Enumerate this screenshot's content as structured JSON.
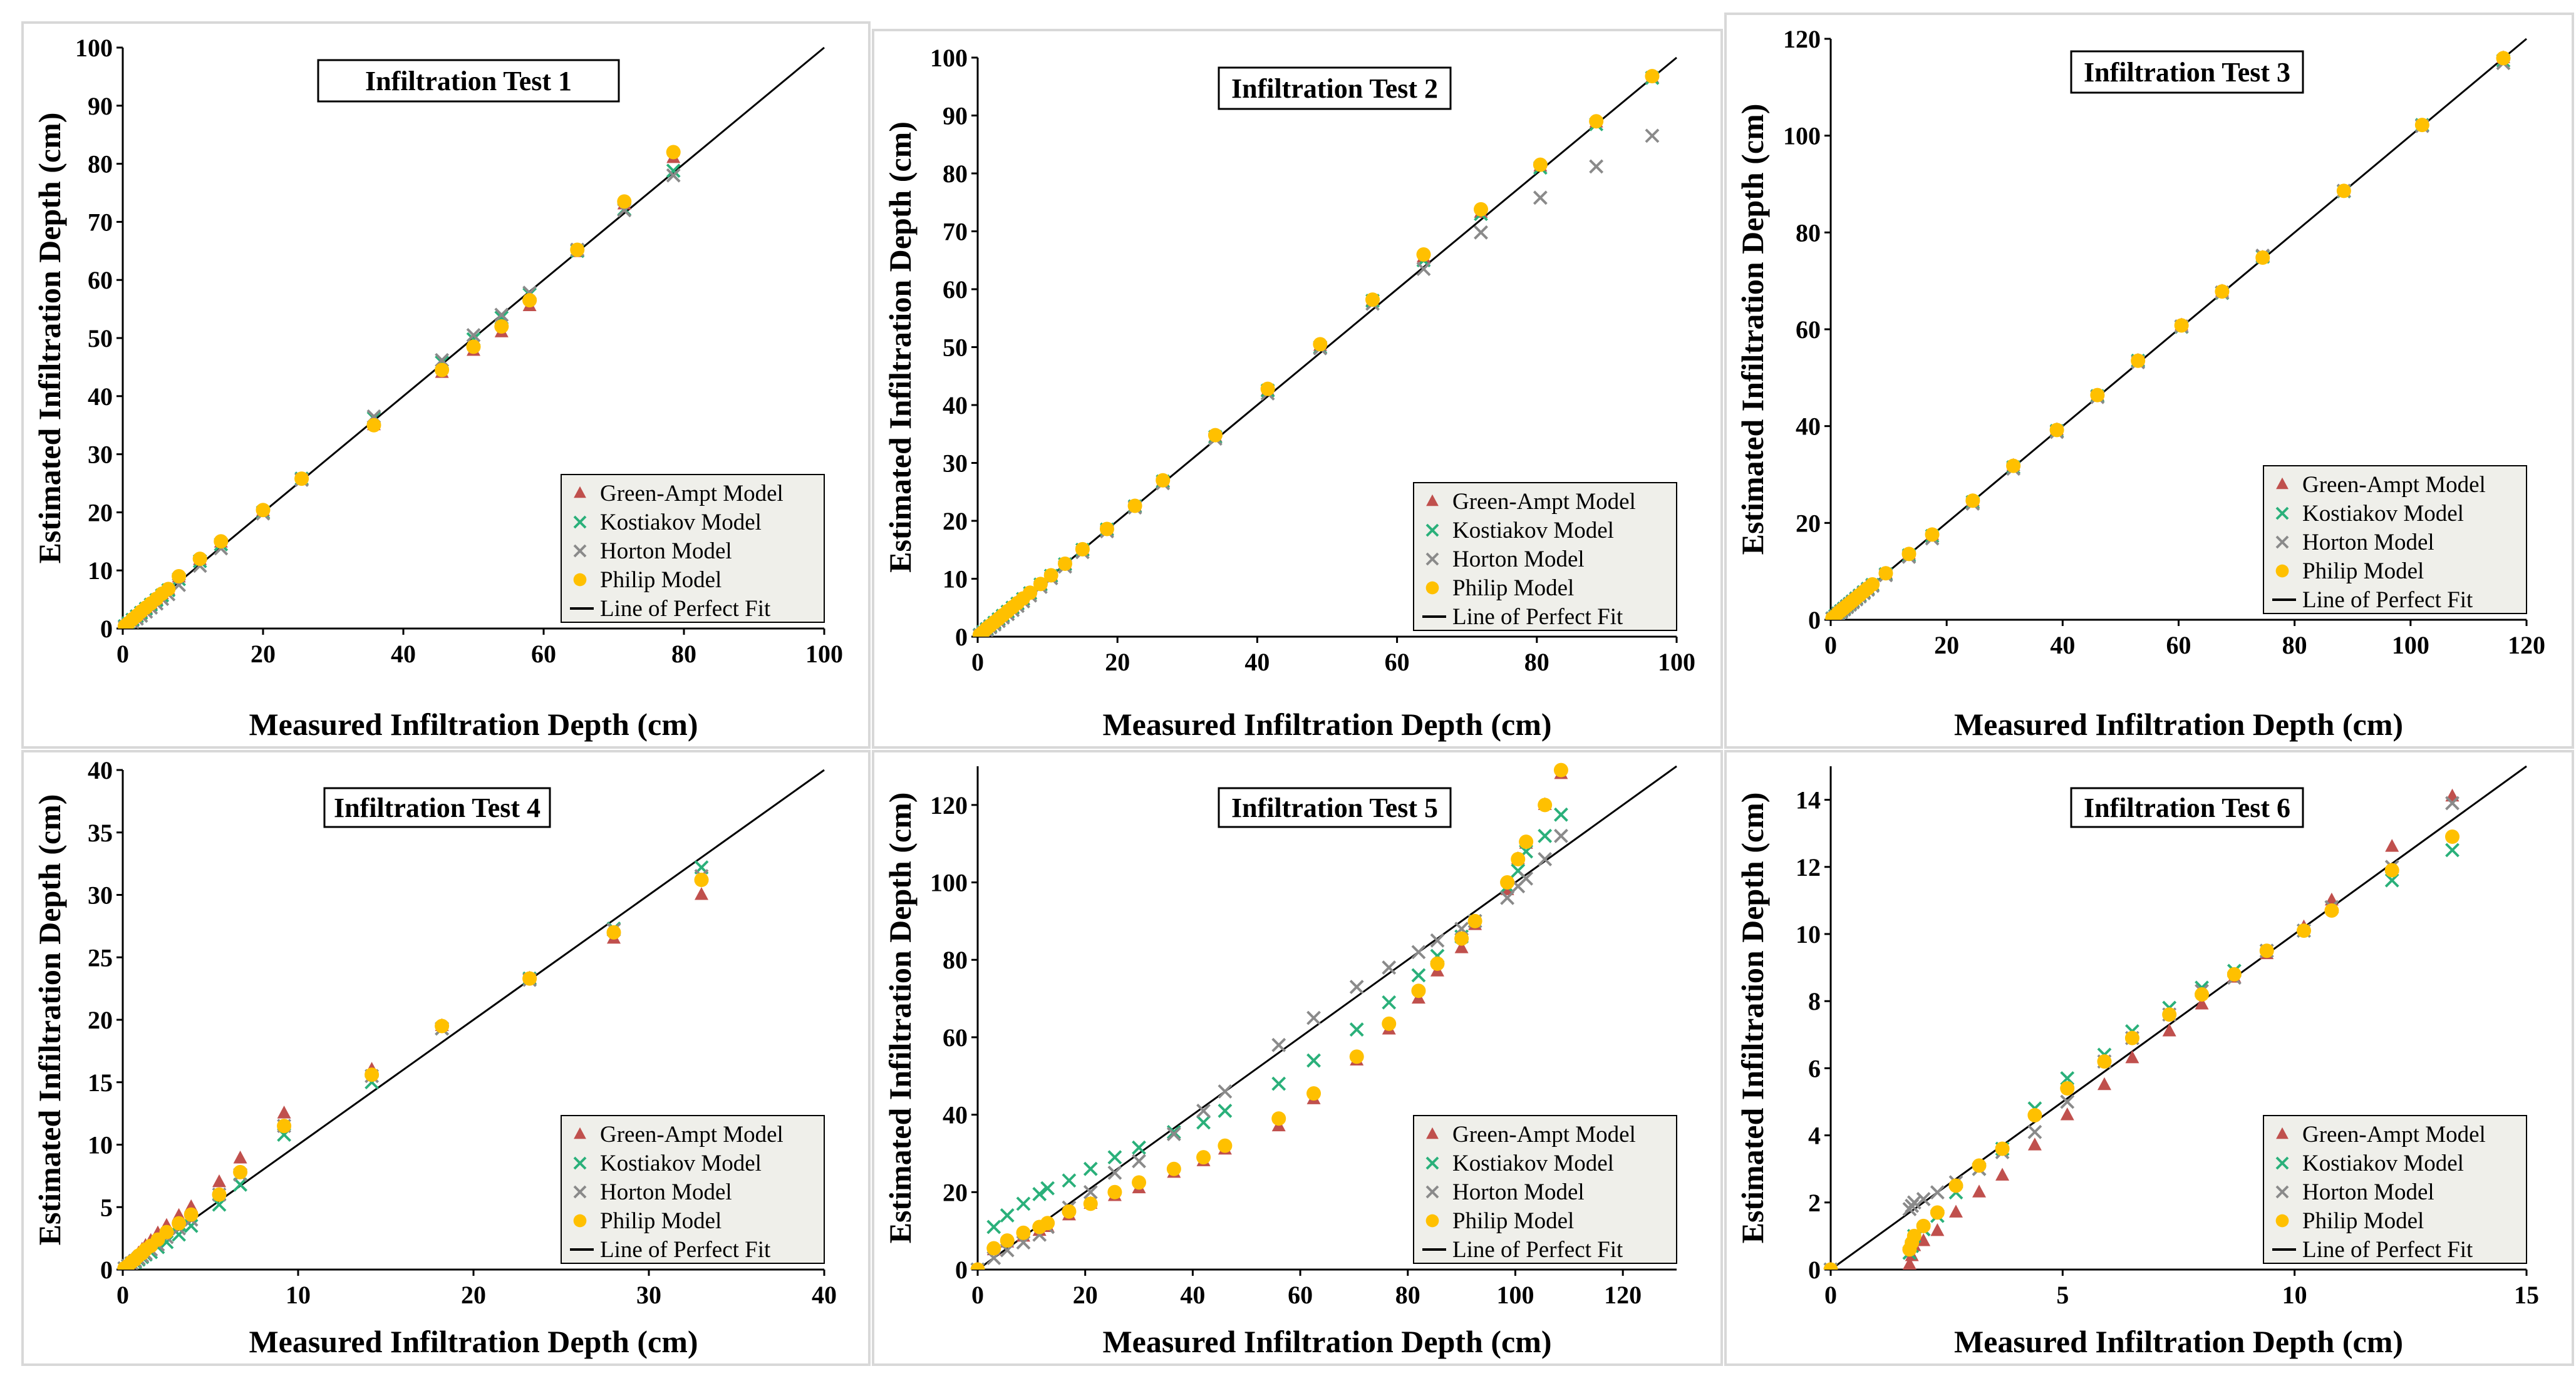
{
  "figure": {
    "x_label": "Measured Infiltration Depth (cm)",
    "y_label": "Estimated Infiltration Depth (cm)",
    "legend": [
      {
        "key": "ga",
        "label": "Green-Ampt Model",
        "marker": "triangle",
        "color": "#c0504d"
      },
      {
        "key": "ko",
        "label": "Kostiakov Model",
        "marker": "x",
        "color": "#2ab07a"
      },
      {
        "key": "ho",
        "label": "Horton Model",
        "marker": "x",
        "color": "#8a8a8a"
      },
      {
        "key": "ph",
        "label": "Philip Model",
        "marker": "circle",
        "color": "#ffc000"
      },
      {
        "key": "line",
        "label": "Line of Perfect Fit",
        "marker": "line",
        "color": "#000000"
      }
    ]
  },
  "chart_data": [
    {
      "type": "scatter",
      "title": "Infiltration Test 1",
      "xlabel": "Measured Infiltration Depth (cm)",
      "ylabel": "Estimated Infiltration Depth (cm)",
      "xlim": [
        0,
        100
      ],
      "ylim": [
        0,
        100
      ],
      "xticks": [
        0,
        20,
        40,
        60,
        80,
        100
      ],
      "yticks": [
        0,
        10,
        20,
        30,
        40,
        50,
        60,
        70,
        80,
        90,
        100
      ],
      "x": [
        0.3,
        0.8,
        1.4,
        2.0,
        2.6,
        3.3,
        4.0,
        4.8,
        5.6,
        6.5,
        8.0,
        11.0,
        14.0,
        20.0,
        25.5,
        35.8,
        45.5,
        50.0,
        54.0,
        58.0,
        64.8,
        71.5,
        78.5
      ],
      "series": [
        {
          "name": "Green-Ampt Model",
          "values": [
            0.3,
            0.8,
            1.5,
            2.1,
            2.8,
            3.5,
            4.2,
            5.0,
            5.9,
            6.7,
            8.8,
            11.8,
            14.8,
            20.2,
            25.6,
            35.0,
            44.0,
            47.8,
            51.0,
            55.5,
            64.8,
            73.0,
            81.0
          ]
        },
        {
          "name": "Kostiakov Model",
          "values": [
            0.4,
            0.9,
            1.5,
            2.1,
            2.7,
            3.4,
            4.1,
            4.9,
            5.7,
            6.6,
            8.5,
            11.6,
            14.5,
            20.0,
            25.8,
            36.2,
            45.8,
            49.8,
            53.5,
            57.5,
            65.0,
            72.2,
            78.8
          ]
        },
        {
          "name": "Horton Model",
          "values": [
            0.2,
            0.6,
            1.1,
            1.7,
            2.2,
            2.9,
            3.6,
            4.3,
            5.1,
            5.9,
            7.5,
            10.8,
            13.8,
            19.8,
            25.6,
            36.5,
            46.2,
            50.5,
            54.0,
            57.8,
            65.2,
            72.0,
            78.0
          ]
        },
        {
          "name": "Philip Model",
          "values": [
            0.4,
            0.9,
            1.6,
            2.2,
            2.9,
            3.6,
            4.3,
            5.1,
            6.0,
            6.8,
            9.0,
            12.0,
            15.0,
            20.4,
            25.8,
            35.0,
            44.5,
            48.5,
            52.0,
            56.5,
            65.2,
            73.5,
            82.0
          ]
        }
      ]
    },
    {
      "type": "scatter",
      "title": "Infiltration Test 2",
      "xlabel": "Measured Infiltration Depth (cm)",
      "ylabel": "Estimated Infiltration Depth (cm)",
      "xlim": [
        0,
        100
      ],
      "ylim": [
        0,
        100
      ],
      "xticks": [
        0,
        20,
        40,
        60,
        80,
        100
      ],
      "yticks": [
        0,
        10,
        20,
        30,
        40,
        50,
        60,
        70,
        80,
        90,
        100
      ],
      "x": [
        0.3,
        0.8,
        1.3,
        1.8,
        2.4,
        3.0,
        3.6,
        4.3,
        5.0,
        5.7,
        6.5,
        7.5,
        9.0,
        10.5,
        12.5,
        15.0,
        18.5,
        22.5,
        26.5,
        34.0,
        41.5,
        49.0,
        56.5,
        63.8,
        72.0,
        80.5,
        88.5,
        96.5
      ],
      "series": [
        {
          "name": "Green-Ampt Model",
          "values": [
            0.3,
            0.8,
            1.3,
            1.8,
            2.4,
            3.0,
            3.6,
            4.3,
            5.0,
            5.7,
            6.5,
            7.5,
            9.0,
            10.5,
            12.5,
            15.0,
            18.5,
            22.5,
            26.8,
            34.5,
            42.5,
            50.2,
            58.0,
            65.5,
            73.2,
            81.2,
            88.8,
            96.5
          ]
        },
        {
          "name": "Kostiakov Model",
          "values": [
            0.3,
            0.8,
            1.3,
            1.8,
            2.4,
            3.0,
            3.6,
            4.3,
            5.0,
            5.7,
            6.5,
            7.5,
            9.0,
            10.5,
            12.5,
            15.0,
            18.5,
            22.5,
            26.8,
            34.5,
            42.5,
            50.0,
            58.0,
            65.0,
            73.0,
            81.0,
            88.5,
            96.5
          ]
        },
        {
          "name": "Horton Model",
          "values": [
            0.2,
            0.6,
            1.1,
            1.6,
            2.1,
            2.7,
            3.3,
            3.9,
            4.6,
            5.3,
            6.1,
            7.1,
            8.6,
            10.1,
            12.1,
            14.6,
            18.2,
            22.3,
            26.5,
            34.2,
            42.0,
            49.8,
            57.5,
            63.5,
            69.8,
            75.8,
            81.2,
            86.5
          ]
        },
        {
          "name": "Philip Model",
          "values": [
            0.3,
            0.8,
            1.4,
            1.9,
            2.5,
            3.1,
            3.7,
            4.4,
            5.1,
            5.8,
            6.6,
            7.6,
            9.1,
            10.6,
            12.6,
            15.1,
            18.6,
            22.6,
            27.0,
            34.8,
            42.8,
            50.5,
            58.2,
            66.0,
            73.8,
            81.5,
            89.0,
            96.8
          ]
        }
      ]
    },
    {
      "type": "scatter",
      "title": "Infiltration Test 3",
      "xlabel": "Measured Infiltration Depth (cm)",
      "ylabel": "Estimated Infiltration Depth (cm)",
      "xlim": [
        0,
        120
      ],
      "ylim": [
        0,
        120
      ],
      "xticks": [
        0,
        20,
        40,
        60,
        80,
        100,
        120
      ],
      "yticks": [
        0,
        20,
        40,
        60,
        80,
        100,
        120
      ],
      "x": [
        0.3,
        0.8,
        1.3,
        1.8,
        2.3,
        2.8,
        3.3,
        3.8,
        4.4,
        5.0,
        5.7,
        6.4,
        7.2,
        9.5,
        13.5,
        17.5,
        24.5,
        31.5,
        39.0,
        46.0,
        53.0,
        60.5,
        67.5,
        74.5,
        88.5,
        102.0,
        116.0
      ],
      "series": [
        {
          "name": "Green-Ampt Model",
          "values": [
            0.3,
            0.8,
            1.3,
            1.8,
            2.3,
            2.8,
            3.3,
            3.8,
            4.4,
            5.0,
            5.7,
            6.4,
            7.2,
            9.5,
            13.5,
            17.5,
            24.5,
            31.8,
            39.2,
            46.3,
            53.5,
            60.8,
            67.8,
            74.8,
            88.5,
            102.0,
            116.0
          ]
        },
        {
          "name": "Kostiakov Model",
          "values": [
            0.3,
            0.8,
            1.3,
            1.8,
            2.3,
            2.8,
            3.3,
            3.8,
            4.4,
            5.0,
            5.7,
            6.4,
            7.2,
            9.4,
            13.3,
            17.3,
            24.3,
            31.5,
            39.0,
            46.2,
            53.5,
            60.5,
            67.5,
            75.0,
            88.5,
            102.2,
            115.5
          ]
        },
        {
          "name": "Horton Model",
          "values": [
            0.2,
            0.6,
            1.1,
            1.6,
            2.1,
            2.6,
            3.1,
            3.6,
            4.2,
            4.8,
            5.5,
            6.2,
            7.0,
            9.2,
            13.0,
            16.8,
            24.0,
            31.2,
            38.8,
            46.0,
            53.2,
            60.6,
            67.6,
            75.2,
            88.6,
            102.0,
            115.0
          ]
        },
        {
          "name": "Philip Model",
          "values": [
            0.3,
            0.8,
            1.4,
            1.9,
            2.4,
            2.9,
            3.4,
            3.9,
            4.5,
            5.1,
            5.8,
            6.5,
            7.3,
            9.6,
            13.6,
            17.6,
            24.6,
            31.8,
            39.2,
            46.4,
            53.5,
            60.8,
            67.8,
            74.8,
            88.6,
            102.2,
            116.0
          ]
        }
      ]
    },
    {
      "type": "scatter",
      "title": "Infiltration Test 4",
      "xlabel": "Measured Infiltration Depth (cm)",
      "ylabel": "Estimated Infiltration Depth (cm)",
      "xlim": [
        0,
        40
      ],
      "ylim": [
        0,
        40
      ],
      "xticks": [
        0,
        10,
        20,
        30,
        40
      ],
      "yticks": [
        0,
        5,
        10,
        15,
        20,
        25,
        30,
        35,
        40
      ],
      "x": [
        0.1,
        0.3,
        0.5,
        0.7,
        0.9,
        1.1,
        1.3,
        1.6,
        2.0,
        2.5,
        3.2,
        3.9,
        5.5,
        6.7,
        9.2,
        14.2,
        18.2,
        23.2,
        28.0,
        33.0
      ],
      "series": [
        {
          "name": "Green-Ampt Model",
          "values": [
            0.1,
            0.4,
            0.7,
            1.0,
            1.3,
            1.6,
            1.9,
            2.3,
            2.9,
            3.5,
            4.3,
            5.0,
            7.0,
            8.9,
            12.5,
            16.0,
            19.5,
            23.3,
            26.5,
            30.0
          ]
        },
        {
          "name": "Kostiakov Model",
          "values": [
            0.1,
            0.3,
            0.5,
            0.6,
            0.8,
            1.0,
            1.2,
            1.4,
            1.8,
            2.2,
            2.8,
            3.5,
            5.2,
            6.8,
            10.8,
            15.0,
            19.3,
            23.3,
            27.3,
            32.2
          ]
        },
        {
          "name": "Horton Model",
          "values": [
            0.1,
            0.3,
            0.5,
            0.7,
            0.9,
            1.1,
            1.3,
            1.6,
            2.0,
            2.6,
            3.3,
            4.0,
            6.0,
            7.6,
            11.5,
            15.5,
            19.3,
            23.2,
            27.2,
            31.5
          ]
        },
        {
          "name": "Philip Model",
          "values": [
            0.1,
            0.3,
            0.6,
            0.8,
            1.1,
            1.3,
            1.6,
            1.9,
            2.4,
            3.0,
            3.7,
            4.4,
            6.0,
            7.8,
            11.5,
            15.6,
            19.5,
            23.3,
            27.0,
            31.2
          ]
        }
      ]
    },
    {
      "type": "scatter",
      "title": "Infiltration Test 5",
      "xlabel": "Measured Infiltration Depth (cm)",
      "ylabel": "Estimated Infiltration Depth (cm)",
      "xlim": [
        0,
        130
      ],
      "ylim": [
        0,
        130
      ],
      "xticks": [
        0,
        20,
        40,
        60,
        80,
        100,
        120
      ],
      "yticks": [
        0,
        20,
        40,
        60,
        80,
        100,
        120
      ],
      "x": [
        0,
        3,
        5.5,
        8.5,
        11.5,
        13,
        17,
        21,
        25.5,
        30,
        36.5,
        42,
        46,
        56,
        62.5,
        70.5,
        76.5,
        82,
        85.5,
        90,
        92.5,
        98.5,
        100.5,
        102,
        105.5,
        108.5
      ],
      "series": [
        {
          "name": "Green-Ampt Model",
          "values": [
            0,
            5,
            7,
            8.5,
            10,
            11,
            14,
            17,
            19,
            21,
            25,
            28,
            31,
            37,
            44,
            54,
            62,
            70,
            77,
            83,
            89,
            98,
            106,
            110,
            120,
            128
          ]
        },
        {
          "name": "Kostiakov Model",
          "values": [
            0,
            11,
            14,
            17,
            19.5,
            21,
            23,
            26,
            29,
            31.5,
            35.5,
            38,
            41,
            48,
            54,
            62,
            69,
            76,
            81,
            86,
            90,
            99,
            103,
            108,
            112,
            117.5
          ]
        },
        {
          "name": "Horton Model",
          "values": [
            0,
            3,
            5,
            7,
            9,
            11,
            16,
            20,
            25,
            28,
            35,
            41,
            46,
            58,
            65,
            73,
            78,
            82,
            85,
            88,
            90,
            96,
            99,
            101,
            106,
            112
          ]
        },
        {
          "name": "Philip Model",
          "values": [
            0,
            5.5,
            7.5,
            9.5,
            11,
            12,
            15,
            17,
            20,
            22.5,
            26,
            29,
            32,
            39,
            45.5,
            55,
            63.5,
            72,
            79,
            85.5,
            90,
            100,
            106,
            110.5,
            120,
            129
          ]
        }
      ]
    },
    {
      "type": "scatter",
      "title": "Infiltration Test 6",
      "xlabel": "Measured Infiltration Depth (cm)",
      "ylabel": "Estimated Infiltration Depth (cm)",
      "xlim": [
        0,
        15
      ],
      "ylim": [
        0,
        15
      ],
      "xticks": [
        0,
        5,
        10,
        15
      ],
      "yticks": [
        0,
        2,
        4,
        6,
        8,
        10,
        12,
        14
      ],
      "x": [
        0,
        1.7,
        1.75,
        1.8,
        2.0,
        2.3,
        2.7,
        3.2,
        3.7,
        4.4,
        5.1,
        5.9,
        6.5,
        7.3,
        8.0,
        8.7,
        9.4,
        10.2,
        10.8,
        12.1,
        13.4
      ],
      "series": [
        {
          "name": "Green-Ampt Model",
          "values": [
            0,
            0.15,
            0.4,
            0.7,
            0.85,
            1.15,
            1.7,
            2.3,
            2.8,
            3.7,
            4.6,
            5.5,
            6.3,
            7.1,
            7.9,
            8.7,
            9.4,
            10.2,
            11.0,
            12.6,
            14.1
          ]
        },
        {
          "name": "Kostiakov Model",
          "values": [
            0,
            0.5,
            0.7,
            1.0,
            1.2,
            1.6,
            2.3,
            3.0,
            3.6,
            4.8,
            5.7,
            6.4,
            7.1,
            7.8,
            8.4,
            8.9,
            9.5,
            10.1,
            10.8,
            11.6,
            12.5
          ]
        },
        {
          "name": "Horton Model",
          "values": [
            0,
            1.8,
            1.9,
            2.0,
            2.1,
            2.3,
            2.6,
            3.0,
            3.5,
            4.1,
            5.0,
            6.2,
            6.9,
            7.6,
            8.3,
            8.7,
            9.5,
            10.1,
            10.8,
            12.0,
            13.9
          ]
        },
        {
          "name": "Philip Model",
          "values": [
            0,
            0.6,
            0.8,
            1.0,
            1.3,
            1.7,
            2.5,
            3.1,
            3.6,
            4.6,
            5.4,
            6.2,
            6.9,
            7.6,
            8.2,
            8.8,
            9.5,
            10.1,
            10.7,
            11.9,
            12.9
          ]
        }
      ]
    }
  ]
}
